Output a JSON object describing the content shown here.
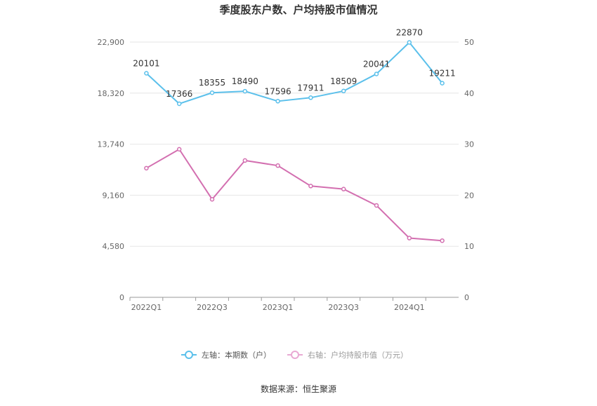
{
  "chart_data": {
    "type": "line",
    "title": "季度股东户数、户均持股市值情况",
    "source": "数据来源：恒生聚源",
    "x_tick_labels": [
      "2022Q1",
      "2022Q3",
      "2023Q1",
      "2023Q3",
      "2024Q1"
    ],
    "x": [
      "2022Q1",
      "2022Q2",
      "2022Q3",
      "2022Q4",
      "2023Q1",
      "2023Q2",
      "2023Q3",
      "2023Q4",
      "2024Q1",
      "2024Q2"
    ],
    "left_axis": {
      "ticks": [
        "0",
        "4,580",
        "9,160",
        "13,740",
        "18,320",
        "22,900"
      ],
      "ylim": [
        0,
        22900
      ]
    },
    "right_axis": {
      "ticks": [
        "0",
        "10",
        "20",
        "30",
        "40",
        "50"
      ],
      "ylim": [
        0,
        50
      ]
    },
    "legend_placement": "bottom-center",
    "grid": true,
    "series": [
      {
        "name": "左轴：本期数（户）",
        "axis": "left",
        "color": "#5bc0eb",
        "values": [
          20101,
          17366,
          18355,
          18490,
          17596,
          17911,
          18509,
          20041,
          22870,
          19211
        ],
        "labels": [
          "20101",
          "17366",
          "18355",
          "18490",
          "17596",
          "17911",
          "18509",
          "20041",
          "22870",
          "19211"
        ]
      },
      {
        "name": "右轴：户均持股市值（万元）",
        "axis": "right",
        "color": "#d36fb0",
        "values": [
          25.3,
          29.0,
          19.2,
          26.8,
          25.8,
          21.8,
          21.2,
          18.0,
          11.6,
          11.1
        ]
      }
    ]
  }
}
